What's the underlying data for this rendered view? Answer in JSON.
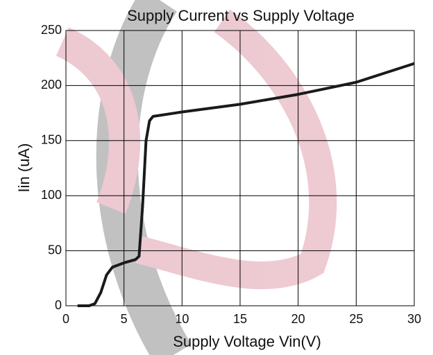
{
  "chart_data": {
    "type": "line",
    "title": "Supply Current vs Supply Voltage",
    "xlabel": "Supply Voltage Vin(V)",
    "ylabel": "Iin (uA)",
    "x": [
      1,
      2,
      2.5,
      3,
      3.5,
      4,
      5,
      6,
      6.3,
      6.6,
      6.9,
      7.2,
      7.5,
      10,
      15,
      20,
      25,
      30
    ],
    "series": [
      {
        "name": "Iin",
        "color": "#1a1a1a",
        "values": [
          0,
          0,
          2,
          12,
          28,
          35,
          39,
          42,
          45,
          90,
          150,
          168,
          172,
          176,
          183,
          192,
          203,
          220
        ]
      }
    ],
    "xlim": [
      0,
      30
    ],
    "xticks": [
      0,
      5,
      10,
      15,
      20,
      25,
      30
    ],
    "ylim": [
      0,
      250
    ],
    "yticks": [
      0,
      50,
      100,
      150,
      200,
      250
    ],
    "grid": true
  }
}
